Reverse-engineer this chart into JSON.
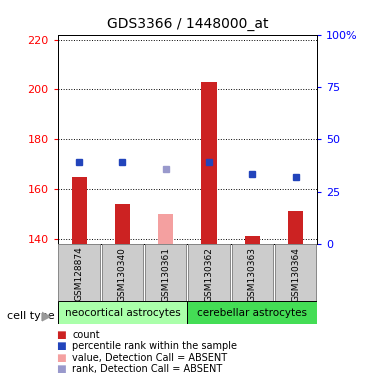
{
  "title": "GDS3366 / 1448000_at",
  "samples": [
    "GSM128874",
    "GSM130340",
    "GSM130361",
    "GSM130362",
    "GSM130363",
    "GSM130364"
  ],
  "bar_values": [
    165,
    154,
    150,
    203,
    141,
    151
  ],
  "bar_absent": [
    false,
    false,
    true,
    false,
    false,
    false
  ],
  "rank_values": [
    171,
    171,
    168,
    171,
    166,
    165
  ],
  "rank_absent": [
    false,
    false,
    true,
    false,
    false,
    false
  ],
  "ylim_left": [
    138,
    222
  ],
  "ylim_right": [
    0,
    100
  ],
  "yticks_left": [
    140,
    160,
    180,
    200,
    220
  ],
  "yticks_right": [
    0,
    25,
    50,
    75,
    100
  ],
  "ytick_right_labels": [
    "0",
    "25",
    "50",
    "75",
    "100%"
  ],
  "bar_color_present": "#cc2222",
  "bar_color_absent": "#f4a0a0",
  "rank_color_present": "#2244bb",
  "rank_color_absent": "#9999cc",
  "bar_width": 0.35,
  "group1_label": "neocortical astrocytes",
  "group2_label": "cerebellar astrocytes",
  "group1_indices": [
    0,
    1,
    2
  ],
  "group2_indices": [
    3,
    4,
    5
  ],
  "group1_color": "#aaffaa",
  "group2_color": "#44dd55",
  "cell_type_label": "cell type",
  "legend_items": [
    {
      "label": "count",
      "color": "#cc2222"
    },
    {
      "label": "percentile rank within the sample",
      "color": "#2244bb"
    },
    {
      "label": "value, Detection Call = ABSENT",
      "color": "#f4a0a0"
    },
    {
      "label": "rank, Detection Call = ABSENT",
      "color": "#9999cc"
    }
  ],
  "background_color": "#ffffff",
  "column_bg_color": "#cccccc",
  "column_border_color": "#888888"
}
